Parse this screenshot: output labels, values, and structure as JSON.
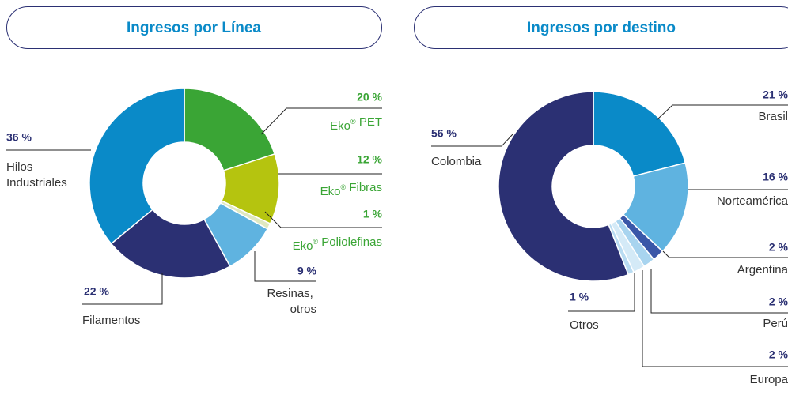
{
  "chart_data": [
    {
      "type": "pie",
      "donut": true,
      "title": "Ingresos por Línea",
      "categories": [
        "Eko® PET",
        "Eko® Fibras",
        "Eko® Poliolefinas",
        "Resinas, otros",
        "Filamentos",
        "Hilos Industriales"
      ],
      "values": [
        20,
        12,
        1,
        9,
        22,
        36
      ],
      "value_labels": [
        "20 %",
        "12 %",
        "1 %",
        "9 %",
        "22 %",
        "36 %"
      ],
      "colors": [
        "#3aa535",
        "#b5c40f",
        "#dfe8c0",
        "#5fb3e0",
        "#2b3073",
        "#0a8ac8"
      ]
    },
    {
      "type": "pie",
      "donut": true,
      "title": "Ingresos por destino",
      "categories": [
        "Brasil",
        "Norteamérica",
        "Argentina",
        "Perú",
        "Europa",
        "Otros",
        "Colombia"
      ],
      "values": [
        21,
        16,
        2,
        2,
        2,
        1,
        56
      ],
      "value_labels": [
        "21 %",
        "16 %",
        "2 %",
        "2 %",
        "2 %",
        "1 %",
        "56 %"
      ],
      "colors": [
        "#0a8ac8",
        "#5fb3e0",
        "#3a57a8",
        "#a8d4ef",
        "#d4eaf7",
        "#b9dcf2",
        "#2b3073"
      ]
    }
  ]
}
